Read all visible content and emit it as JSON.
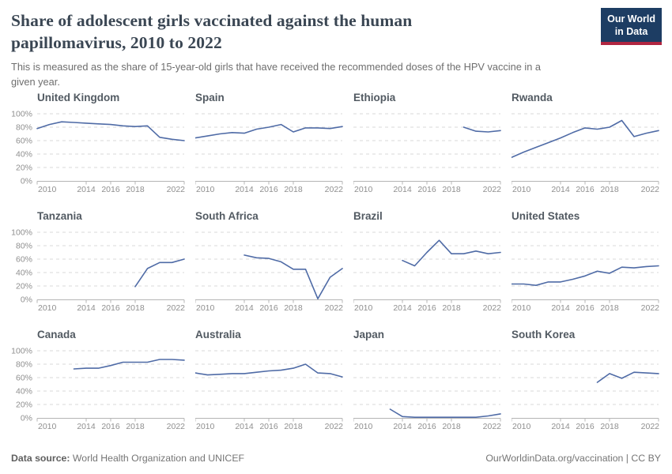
{
  "header": {
    "title": "Share of adolescent girls vaccinated against the human papillomavirus, 2010 to 2022",
    "subtitle": "This is measured as the share of 15-year-old girls that have received the recommended doses of the HPV vaccine in a given year.",
    "logo": {
      "line1": "Our World",
      "line2": "in Data",
      "bg_color": "#1d3d63",
      "stripe_color": "#b02540"
    }
  },
  "footer": {
    "datasource_label": "Data source:",
    "datasource_value": " World Health Organization and UNICEF",
    "right_text": "OurWorldinData.org/vaccination | CC BY"
  },
  "chart_data": {
    "type": "line",
    "layout": "small-multiples 4 columns x 3 rows",
    "title": "Share of adolescent girls vaccinated against the human papillomavirus, 2010 to 2022",
    "xlabel": "",
    "ylabel": "",
    "x_range": [
      2010,
      2022
    ],
    "x_ticks": [
      2010,
      2014,
      2016,
      2018,
      2022
    ],
    "ylim": [
      0,
      100
    ],
    "y_ticks_percent": [
      0,
      20,
      40,
      60,
      80,
      100
    ],
    "grid": true,
    "grid_style": "dashed",
    "line_color": "#4f6ba6",
    "series": [
      {
        "name": "United Kingdom",
        "years": [
          2010,
          2011,
          2012,
          2013,
          2014,
          2015,
          2016,
          2017,
          2018,
          2019,
          2020,
          2021,
          2022
        ],
        "values": [
          78,
          84,
          88,
          87,
          86,
          85,
          84,
          82,
          81,
          82,
          65,
          62,
          60
        ]
      },
      {
        "name": "Spain",
        "years": [
          2010,
          2011,
          2012,
          2013,
          2014,
          2015,
          2016,
          2017,
          2018,
          2019,
          2020,
          2021,
          2022
        ],
        "values": [
          64,
          67,
          70,
          72,
          71,
          77,
          80,
          84,
          73,
          79,
          79,
          78,
          81
        ]
      },
      {
        "name": "Ethiopia",
        "years": [
          2019,
          2020,
          2021,
          2022
        ],
        "values": [
          80,
          74,
          73,
          75
        ]
      },
      {
        "name": "Rwanda",
        "years": [
          2010,
          2011,
          2012,
          2013,
          2014,
          2015,
          2016,
          2017,
          2018,
          2019,
          2020,
          2021,
          2022
        ],
        "values": [
          35,
          43,
          50,
          57,
          64,
          72,
          79,
          77,
          80,
          90,
          66,
          71,
          75
        ]
      },
      {
        "name": "Tanzania",
        "years": [
          2018,
          2019,
          2020,
          2021,
          2022
        ],
        "values": [
          19,
          46,
          55,
          55,
          60
        ]
      },
      {
        "name": "South Africa",
        "years": [
          2014,
          2015,
          2016,
          2017,
          2018,
          2019,
          2020,
          2021,
          2022
        ],
        "values": [
          66,
          62,
          61,
          56,
          45,
          45,
          1,
          33,
          46
        ]
      },
      {
        "name": "Brazil",
        "years": [
          2014,
          2015,
          2016,
          2017,
          2018,
          2019,
          2020,
          2021,
          2022
        ],
        "values": [
          58,
          50,
          70,
          88,
          68,
          68,
          72,
          68,
          70
        ]
      },
      {
        "name": "United States",
        "years": [
          2010,
          2011,
          2012,
          2013,
          2014,
          2015,
          2016,
          2017,
          2018,
          2019,
          2020,
          2021,
          2022
        ],
        "values": [
          23,
          23,
          21,
          26,
          26,
          30,
          35,
          42,
          39,
          48,
          47,
          49,
          50
        ]
      },
      {
        "name": "Canada",
        "years": [
          2013,
          2014,
          2015,
          2016,
          2017,
          2018,
          2019,
          2020,
          2021,
          2022
        ],
        "values": [
          73,
          74,
          74,
          78,
          83,
          83,
          83,
          87,
          87,
          86
        ]
      },
      {
        "name": "Australia",
        "years": [
          2010,
          2011,
          2012,
          2013,
          2014,
          2015,
          2016,
          2017,
          2018,
          2019,
          2020,
          2021,
          2022
        ],
        "values": [
          67,
          64,
          65,
          66,
          66,
          68,
          70,
          71,
          74,
          80,
          67,
          66,
          61
        ]
      },
      {
        "name": "Japan",
        "years": [
          2013,
          2014,
          2015,
          2016,
          2017,
          2018,
          2019,
          2020,
          2021,
          2022
        ],
        "values": [
          13,
          2,
          1,
          1,
          1,
          1,
          1,
          1,
          3,
          6
        ]
      },
      {
        "name": "South Korea",
        "years": [
          2017,
          2018,
          2019,
          2020,
          2021,
          2022
        ],
        "values": [
          53,
          66,
          59,
          68,
          67,
          66
        ]
      }
    ]
  }
}
